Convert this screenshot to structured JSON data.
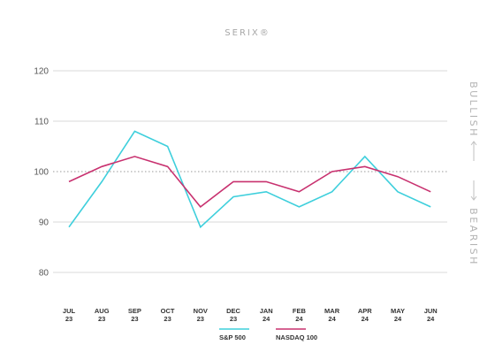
{
  "chart_data": {
    "type": "line",
    "title": "SERIX®",
    "categories": [
      [
        "JUL",
        "23"
      ],
      [
        "AUG",
        "23"
      ],
      [
        "SEP",
        "23"
      ],
      [
        "OCT",
        "23"
      ],
      [
        "NOV",
        "23"
      ],
      [
        "DEC",
        "23"
      ],
      [
        "JAN",
        "24"
      ],
      [
        "FEB",
        "24"
      ],
      [
        "MAR",
        "24"
      ],
      [
        "APR",
        "24"
      ],
      [
        "MAY",
        "24"
      ],
      [
        "JUN",
        "24"
      ]
    ],
    "series": [
      {
        "name": "S&P 500",
        "color": "#3ecfdc",
        "values": [
          89,
          98,
          108,
          105,
          89,
          95,
          96,
          93,
          96,
          103,
          96,
          93
        ]
      },
      {
        "name": "NASDAQ 100",
        "color": "#c8316f",
        "values": [
          98,
          101,
          103,
          101,
          93,
          98,
          98,
          96,
          100,
          101,
          99,
          96
        ]
      }
    ],
    "ylim": [
      80,
      120
    ],
    "yticks": [
      80,
      90,
      100,
      110,
      120
    ],
    "reference_line": 100,
    "grid": true,
    "side_labels": {
      "top": "BULLISH",
      "bottom": "BEARISH"
    },
    "legend_position": "bottom-center"
  }
}
